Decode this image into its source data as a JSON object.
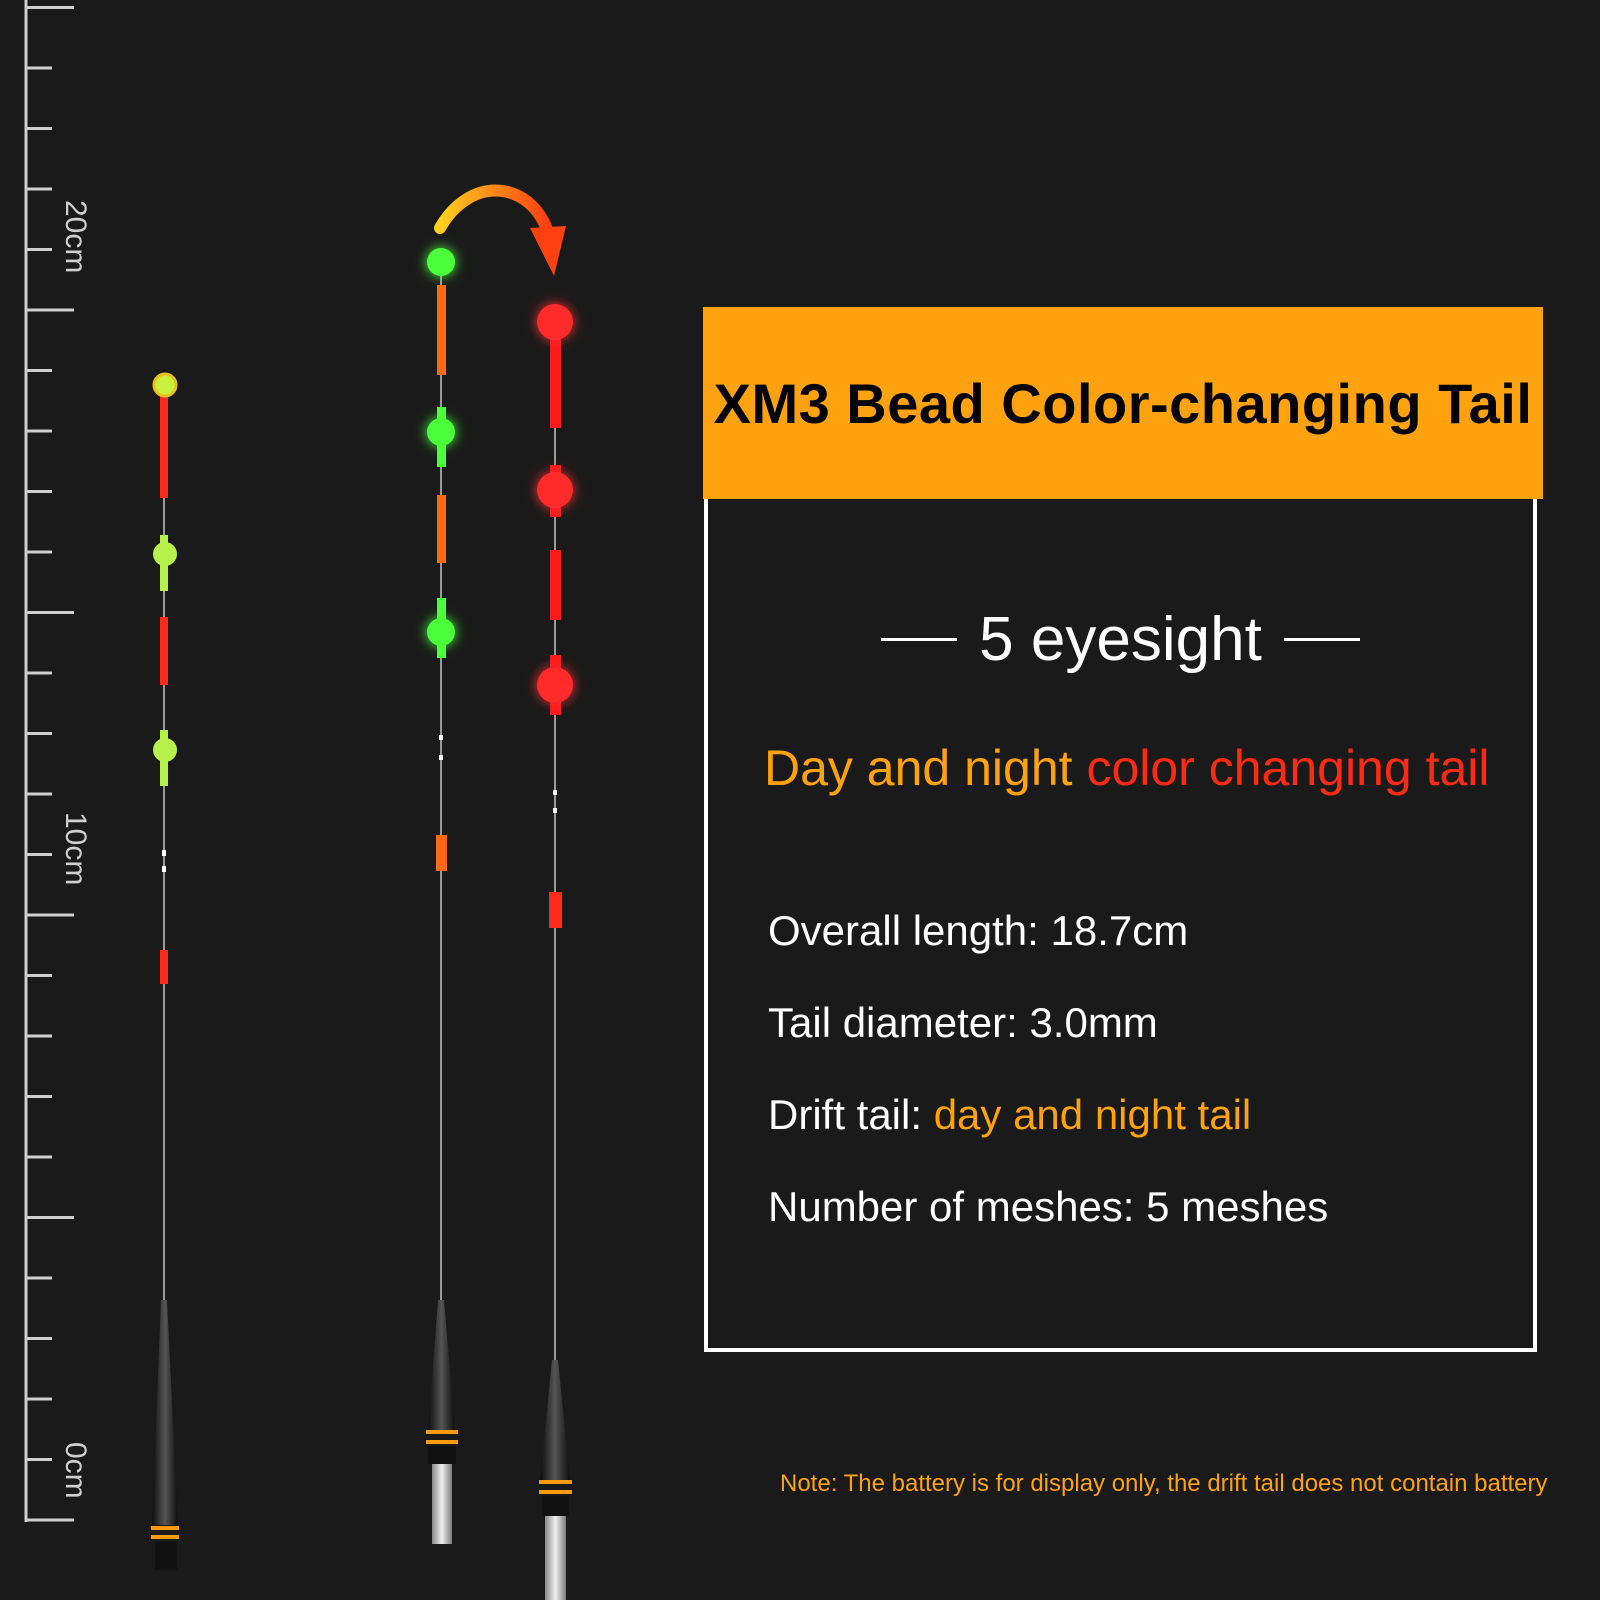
{
  "ruler": {
    "labels": [
      "20cm",
      "10cm",
      "0cm"
    ]
  },
  "floats": [
    {
      "name": "float-daytime",
      "colors": {
        "tip": "#c8f03c",
        "segment": "#ff2a1a",
        "bead": "#b6f04a"
      }
    },
    {
      "name": "float-night-green",
      "colors": {
        "bead": "#4cff3a",
        "segment": "#ff6a10"
      }
    },
    {
      "name": "float-night-red",
      "colors": {
        "bead": "#ff2a2a",
        "segment": "#ff1a1a"
      }
    }
  ],
  "arrow": {
    "direction": "green-to-red",
    "colors": {
      "start": "#ffd020",
      "end": "#ff4010"
    }
  },
  "title": "XM3 Bead Color-changing Tail",
  "eyesight": "5 eyesight",
  "subtitle": {
    "part1": "Day and night",
    "part2": "color changing tail"
  },
  "specs": [
    {
      "label": "Overall length:",
      "value": "18.7cm"
    },
    {
      "label": "Tail diameter:",
      "value": "3.0mm"
    },
    {
      "label": "Drift tail:",
      "value": "day and night tail"
    },
    {
      "label": "Number of meshes:",
      "value": "5 meshes"
    }
  ],
  "note": "Note: The battery is for display only, the drift tail does not contain battery",
  "colors": {
    "background": "#1a1a1a",
    "title_bg": "#ffa20f",
    "accent_orange": "#ffa20f",
    "accent_red": "#ff2a14"
  }
}
